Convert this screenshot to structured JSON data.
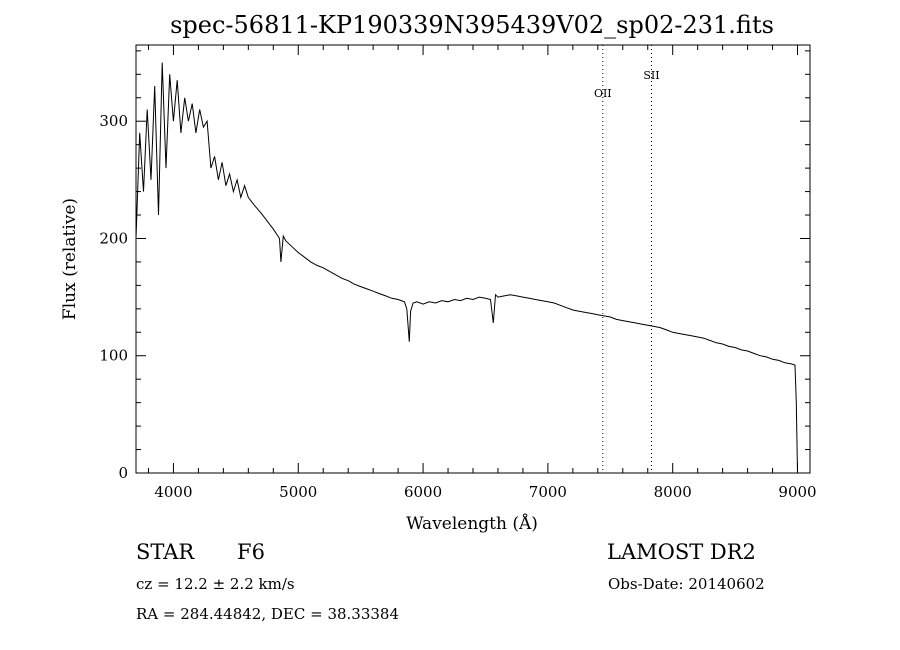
{
  "chart_data": {
    "type": "line",
    "title": "spec-56811-KP190339N395439V02_sp02-231.fits",
    "xlabel": "Wavelength (Å)",
    "ylabel": "Flux (relative)",
    "xlim": [
      3700,
      9100
    ],
    "ylim": [
      0,
      365
    ],
    "x_ticks": [
      4000,
      5000,
      6000,
      7000,
      8000,
      9000
    ],
    "y_ticks": [
      0,
      100,
      200,
      300
    ],
    "x_tick_labels": [
      "4000",
      "5000",
      "6000",
      "7000",
      "8000",
      "9000"
    ],
    "y_tick_labels": [
      "0",
      "100",
      "200",
      "300"
    ],
    "grid": false,
    "series": [
      {
        "x": [
          3700,
          3730,
          3760,
          3790,
          3820,
          3850,
          3880,
          3910,
          3940,
          3970,
          4000,
          4030,
          4060,
          4090,
          4120,
          4150,
          4180,
          4210,
          4240,
          4270,
          4300,
          4330,
          4360,
          4390,
          4420,
          4450,
          4480,
          4510,
          4540,
          4570,
          4600,
          4650,
          4700,
          4750,
          4800,
          4850,
          4861,
          4880,
          4900,
          4950,
          5000,
          5050,
          5100,
          5150,
          5200,
          5250,
          5300,
          5350,
          5400,
          5450,
          5500,
          5550,
          5600,
          5650,
          5700,
          5750,
          5800,
          5850,
          5870,
          5890,
          5900,
          5920,
          5950,
          6000,
          6050,
          6100,
          6150,
          6200,
          6250,
          6300,
          6350,
          6400,
          6450,
          6500,
          6540,
          6563,
          6580,
          6600,
          6650,
          6700,
          6750,
          6800,
          6850,
          6900,
          6950,
          7000,
          7050,
          7100,
          7150,
          7200,
          7250,
          7300,
          7350,
          7400,
          7450,
          7500,
          7550,
          7600,
          7650,
          7700,
          7750,
          7800,
          7850,
          7900,
          7950,
          8000,
          8050,
          8100,
          8150,
          8200,
          8250,
          8300,
          8350,
          8400,
          8450,
          8500,
          8550,
          8600,
          8650,
          8700,
          8750,
          8800,
          8850,
          8900,
          8950,
          8980,
          8990,
          9000
        ],
        "y": [
          200,
          290,
          240,
          310,
          250,
          330,
          220,
          350,
          260,
          340,
          300,
          335,
          290,
          320,
          300,
          315,
          290,
          310,
          295,
          300,
          260,
          270,
          250,
          265,
          245,
          255,
          240,
          250,
          235,
          245,
          235,
          228,
          222,
          215,
          208,
          200,
          180,
          202,
          198,
          193,
          188,
          184,
          180,
          177,
          175,
          172,
          169,
          166,
          164,
          161,
          159,
          157,
          155,
          153,
          151,
          149,
          148,
          146,
          140,
          112,
          138,
          145,
          146,
          144,
          146,
          145,
          147,
          146,
          148,
          147,
          149,
          148,
          150,
          149,
          148,
          128,
          152,
          150,
          151,
          152,
          151,
          150,
          149,
          148,
          147,
          146,
          145,
          143,
          141,
          139,
          138,
          137,
          136,
          135,
          134,
          133,
          131,
          130,
          129,
          128,
          127,
          126,
          125,
          124,
          122,
          120,
          119,
          118,
          117,
          116,
          115,
          113,
          111,
          110,
          108,
          107,
          105,
          104,
          102,
          100,
          99,
          97,
          96,
          94,
          93,
          92,
          60,
          0
        ]
      }
    ],
    "annotations": [
      {
        "label": "OII",
        "x": 7440
      },
      {
        "label": "SII",
        "x": 7830
      }
    ]
  },
  "info": {
    "object_class": "STAR",
    "subclass": "F6",
    "survey": "LAMOST DR2",
    "cz": "cz = 12.2 ± 2.2 km/s",
    "obs_date": "Obs-Date: 20140602",
    "coords": "RA = 284.44842, DEC =  38.33384"
  }
}
